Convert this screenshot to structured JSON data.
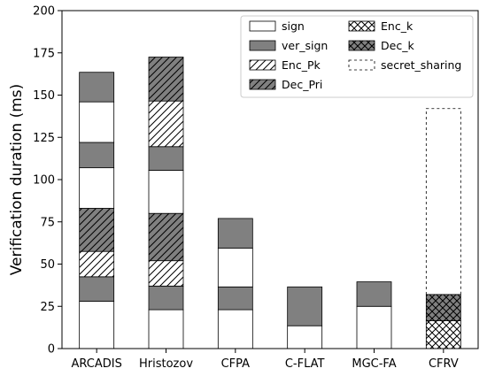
{
  "chart_data": {
    "type": "bar",
    "stacked": true,
    "title": "",
    "xlabel": "",
    "ylabel": "Verification duration (ms)",
    "ylim": [
      0,
      200
    ],
    "yticks": [
      0,
      25,
      50,
      75,
      100,
      125,
      150,
      175,
      200
    ],
    "grid": false,
    "legend_position": "top-right",
    "categories": [
      "ARCADIS",
      "Hristozov",
      "CFPA",
      "C-FLAT",
      "MGC-FA",
      "CFRV"
    ],
    "segments": [
      [
        {
          "series": "sign",
          "value": 28
        },
        {
          "series": "ver_sign",
          "value": 14.5
        },
        {
          "series": "Enc_Pk",
          "value": 15
        },
        {
          "series": "Dec_Pri",
          "value": 25.5
        },
        {
          "series": "sign",
          "value": 24
        },
        {
          "series": "ver_sign",
          "value": 15
        },
        {
          "series": "sign",
          "value": 24
        },
        {
          "series": "ver_sign",
          "value": 17.5
        }
      ],
      [
        {
          "series": "sign",
          "value": 23
        },
        {
          "series": "ver_sign",
          "value": 14
        },
        {
          "series": "Enc_Pk",
          "value": 15
        },
        {
          "series": "Dec_Pri",
          "value": 28
        },
        {
          "series": "sign",
          "value": 25.5
        },
        {
          "series": "ver_sign",
          "value": 14
        },
        {
          "series": "Enc_Pk",
          "value": 27
        },
        {
          "series": "Dec_Pri",
          "value": 26
        }
      ],
      [
        {
          "series": "sign",
          "value": 23
        },
        {
          "series": "ver_sign",
          "value": 13.5
        },
        {
          "series": "sign",
          "value": 23
        },
        {
          "series": "ver_sign",
          "value": 17.5
        }
      ],
      [
        {
          "series": "sign",
          "value": 13.5
        },
        {
          "series": "ver_sign",
          "value": 23
        }
      ],
      [
        {
          "series": "sign",
          "value": 25
        },
        {
          "series": "ver_sign",
          "value": 14.5
        }
      ],
      [
        {
          "series": "Enc_k",
          "value": 16.5
        },
        {
          "series": "Dec_k",
          "value": 15.5
        },
        {
          "series": "secret_sharing",
          "value": 110
        }
      ]
    ],
    "series": [
      {
        "name": "sign",
        "style": "white",
        "color": "#ffffff"
      },
      {
        "name": "ver_sign",
        "style": "gray",
        "color": "#808080"
      },
      {
        "name": "Enc_Pk",
        "style": "white-diagonal",
        "color": "#ffffff"
      },
      {
        "name": "Dec_Pri",
        "style": "gray-diagonal",
        "color": "#808080"
      },
      {
        "name": "Enc_k",
        "style": "white-crosshatch",
        "color": "#ffffff"
      },
      {
        "name": "Dec_k",
        "style": "gray-crosshatch",
        "color": "#808080"
      },
      {
        "name": "secret_sharing",
        "style": "dashed-outline",
        "color": "#ffffff"
      }
    ]
  }
}
